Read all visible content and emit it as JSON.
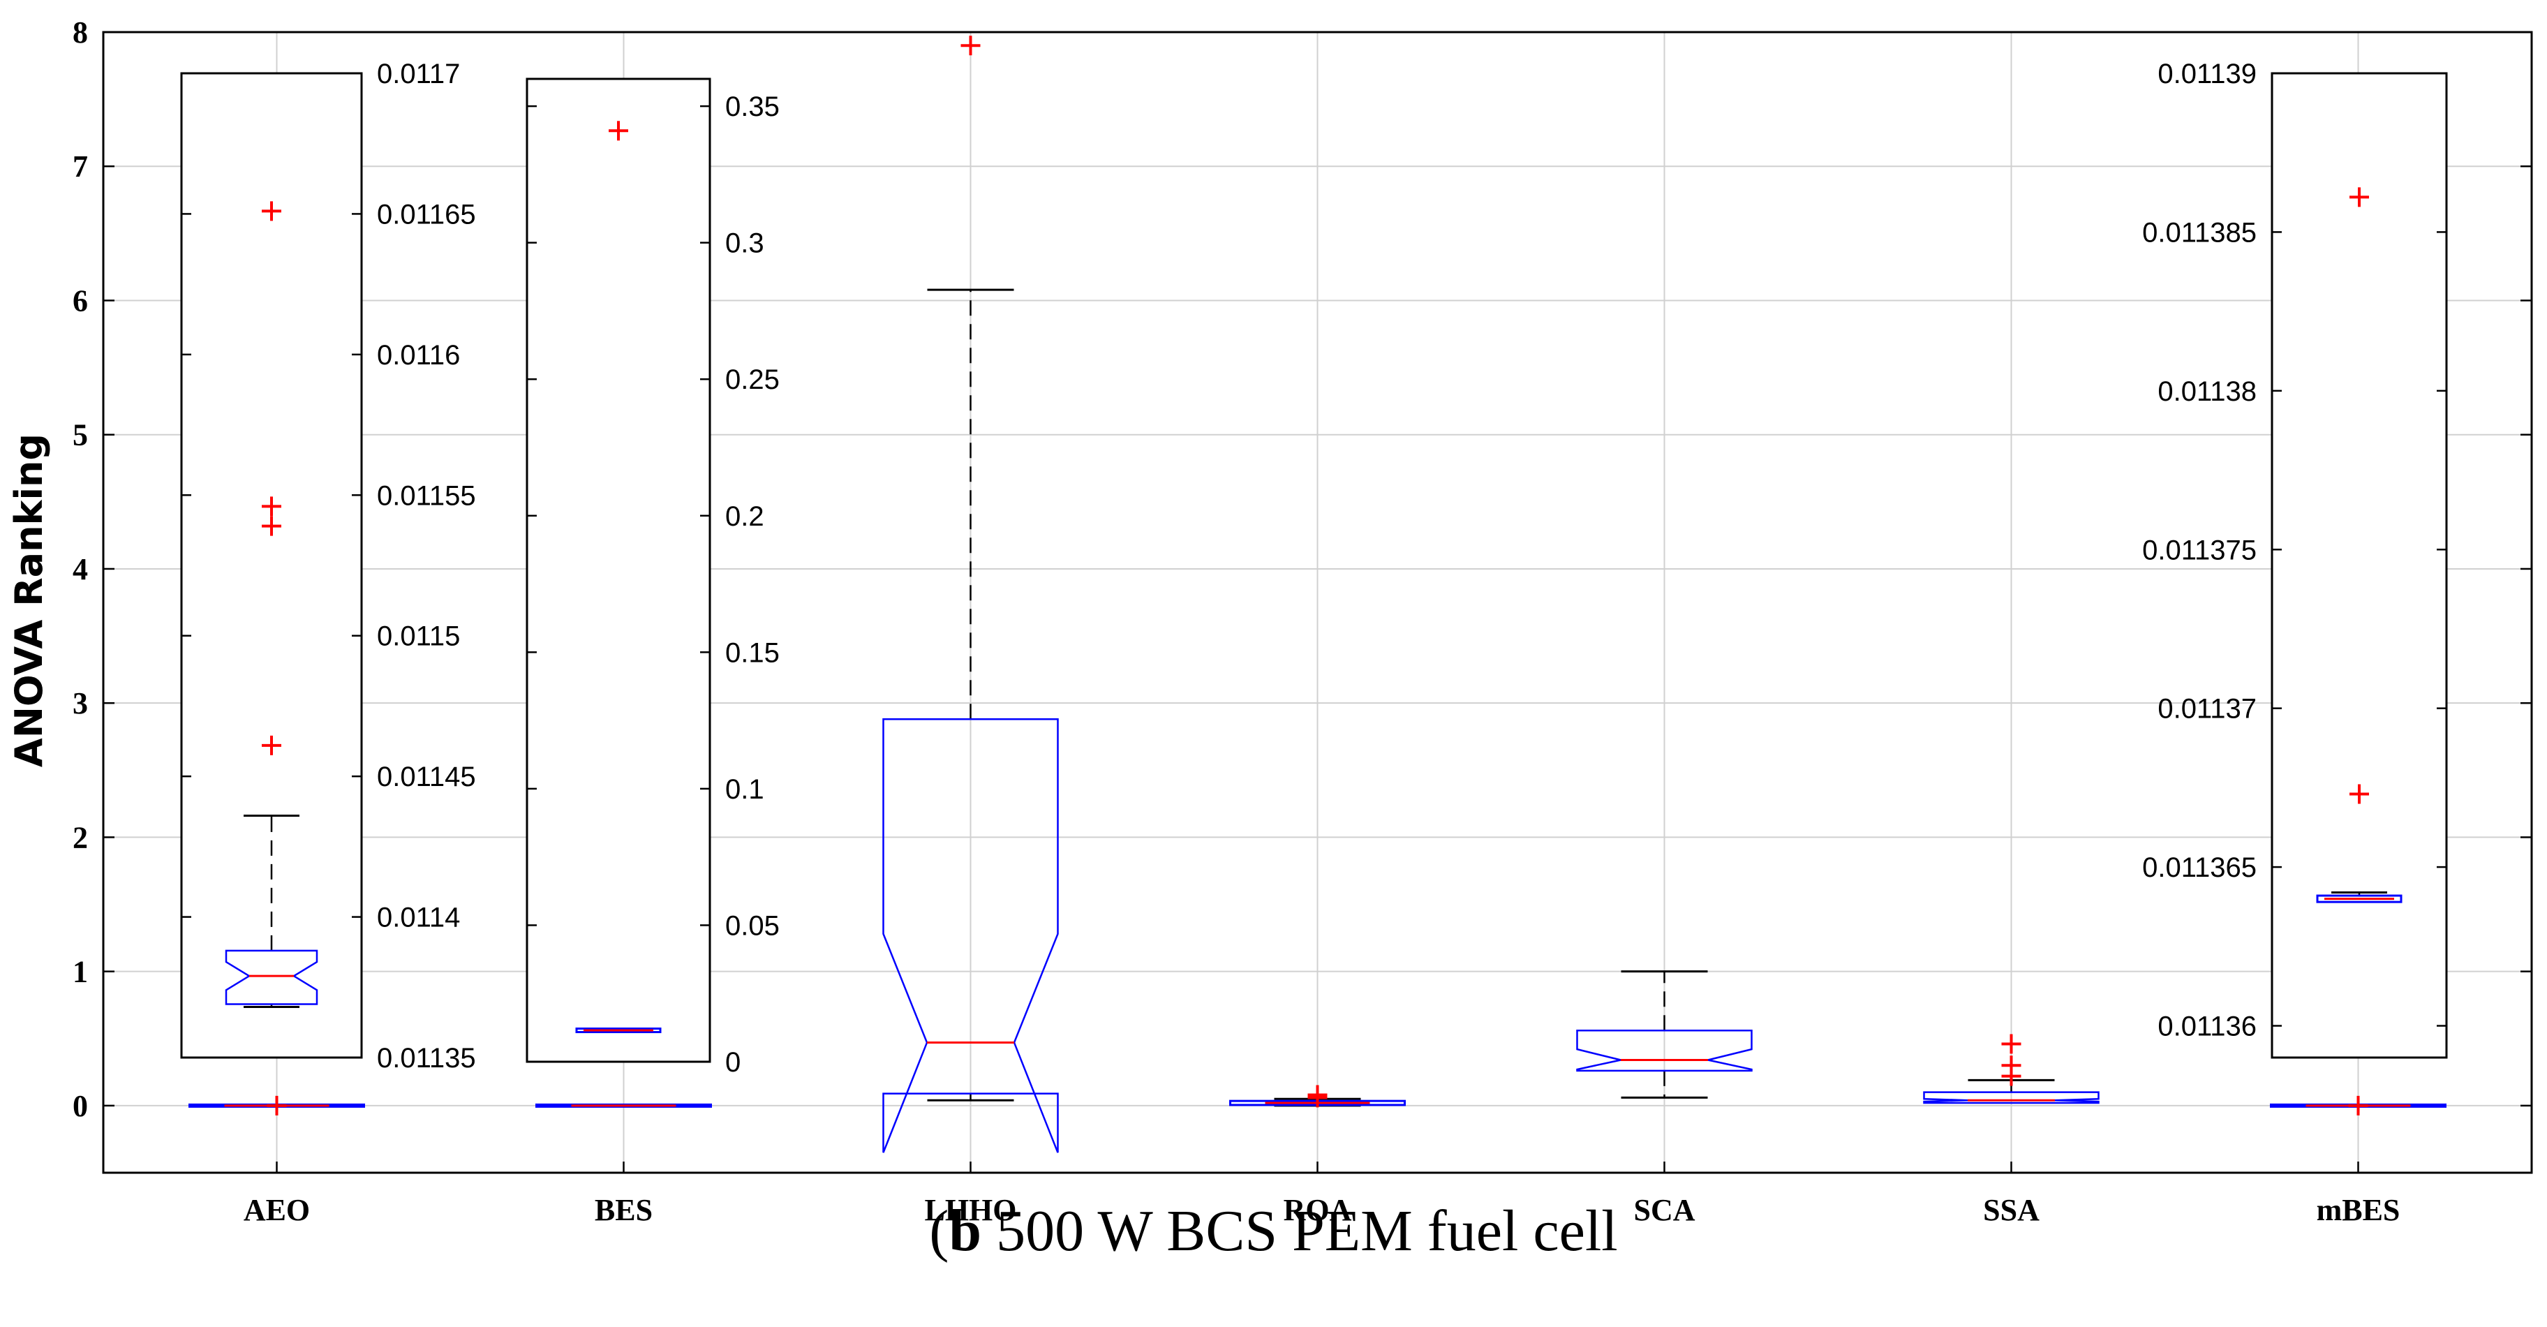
{
  "chart_data": {
    "type": "boxplot",
    "ylabel": "ANOVA Ranking",
    "ylim": [
      -0.5,
      8
    ],
    "yticks": [
      0,
      1,
      2,
      3,
      4,
      5,
      6,
      7,
      8
    ],
    "grid": true,
    "categories": [
      "AEO",
      "BES",
      "LHHO",
      "ROA",
      "SCA",
      "SSA",
      "mBES"
    ],
    "boxes": [
      {
        "name": "AEO",
        "lower_whisker": 0.0,
        "q1": 0.0,
        "median": 0.0,
        "q3": 0.0,
        "upper_whisker": 0.0,
        "notched": false,
        "outliers": [
          0.0
        ]
      },
      {
        "name": "BES",
        "lower_whisker": 0.0,
        "q1": 0.0,
        "median": 0.0,
        "q3": 0.0,
        "upper_whisker": 0.0,
        "notched": false,
        "outliers": []
      },
      {
        "name": "LHHO",
        "lower_whisker": 0.04,
        "q1": 0.09,
        "median": 0.47,
        "q3": 2.88,
        "upper_whisker": 6.08,
        "notched": true,
        "notch_low": -0.35,
        "notch_high": 1.28,
        "outliers": [
          7.9
        ]
      },
      {
        "name": "ROA",
        "lower_whisker": 0.0,
        "q1": 0.01,
        "median": 0.02,
        "q3": 0.04,
        "upper_whisker": 0.05,
        "notched": false,
        "outliers": [
          0.06,
          0.08
        ]
      },
      {
        "name": "SCA",
        "lower_whisker": 0.06,
        "q1": 0.26,
        "median": 0.34,
        "q3": 0.56,
        "upper_whisker": 1.0,
        "notched": true,
        "notch_low": 0.27,
        "notch_high": 0.42,
        "outliers": []
      },
      {
        "name": "SSA",
        "lower_whisker": 0.02,
        "q1": 0.02,
        "median": 0.04,
        "q3": 0.1,
        "upper_whisker": 0.19,
        "notched": true,
        "notch_low": 0.03,
        "notch_high": 0.05,
        "outliers": [
          0.22,
          0.3,
          0.46
        ]
      },
      {
        "name": "mBES",
        "lower_whisker": 0.0,
        "q1": 0.0,
        "median": 0.0,
        "q3": 0.0,
        "upper_whisker": 0.0,
        "notched": false,
        "outliers": [
          0.0
        ]
      }
    ],
    "insets": [
      {
        "name": "AEO-zoom",
        "category": "AEO",
        "ylim": [
          0.01135,
          0.0117
        ],
        "yticks": [
          0.01135,
          0.0114,
          0.01145,
          0.0115,
          0.01155,
          0.0116,
          0.01165,
          0.0117
        ],
        "tick_labels": [
          "0.01135",
          "0.0114",
          "0.01145",
          "0.0115",
          "0.01155",
          "0.0116",
          "0.01165",
          "0.0117"
        ],
        "box": {
          "lower_whisker": 0.011368,
          "q1": 0.011369,
          "median": 0.011379,
          "q3": 0.011388,
          "upper_whisker": 0.011436,
          "notch_low": 0.011374,
          "notch_high": 0.011384
        },
        "outliers": [
          0.011651,
          0.011546,
          0.011539,
          0.011461
        ]
      },
      {
        "name": "BES-zoom",
        "category": "BES",
        "ylim": [
          0,
          0.36
        ],
        "yticks": [
          0,
          0.05,
          0.1,
          0.15,
          0.2,
          0.25,
          0.3,
          0.35
        ],
        "tick_labels": [
          "0",
          "0.05",
          "0.1",
          "0.15",
          "0.2",
          "0.25",
          "0.3",
          "0.35"
        ],
        "box": {
          "lower_whisker": 0.0115,
          "q1": 0.0115,
          "median": 0.0115,
          "q3": 0.0115,
          "upper_whisker": 0.0115
        },
        "outliers": [
          0.341
        ]
      },
      {
        "name": "mBES-zoom",
        "category": "mBES",
        "ylim": [
          0.011359,
          0.01139
        ],
        "yticks": [
          0.01136,
          0.011365,
          0.01137,
          0.011375,
          0.01138,
          0.011385,
          0.01139
        ],
        "tick_labels": [
          "0.01136",
          "0.011365",
          "0.01137",
          "0.011375",
          "0.01138",
          "0.011385",
          "0.01139"
        ],
        "box": {
          "lower_whisker": 0.0113639,
          "q1": 0.0113639,
          "median": 0.011364,
          "q3": 0.0113641,
          "upper_whisker": 0.0113642
        },
        "outliers": [
          0.0113861,
          0.0113673
        ]
      }
    ],
    "colors": {
      "box": "#0000ff",
      "median": "#ff0000",
      "whisker": "#000000",
      "outlier": "#ff0000",
      "grid": "#d0d0d0"
    }
  },
  "caption": {
    "panel": "b",
    "text": " 500 W BCS PEM fuel cell"
  }
}
